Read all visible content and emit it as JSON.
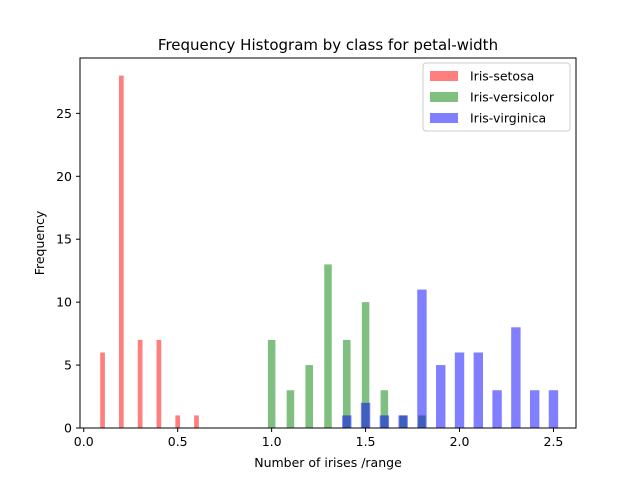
{
  "chart_data": {
    "type": "bar",
    "title": "Frequency Histogram by class for  petal-width",
    "xlabel": "Number of irises /range",
    "ylabel": "Frequency",
    "xlim": [
      -0.02,
      2.62
    ],
    "ylim": [
      0,
      29.4
    ],
    "xticks": [
      "0.0",
      "0.5",
      "1.0",
      "1.5",
      "2.0",
      "2.5"
    ],
    "yticks": [
      "0",
      "5",
      "10",
      "15",
      "20",
      "25"
    ],
    "grid": false,
    "legend_position": "top-right",
    "series": [
      {
        "name": "Iris-setosa",
        "color": "#ff0000",
        "bar_width": 0.025,
        "bins": [
          {
            "x": 0.1,
            "count": 6
          },
          {
            "x": 0.2,
            "count": 28
          },
          {
            "x": 0.3,
            "count": 7
          },
          {
            "x": 0.4,
            "count": 7
          },
          {
            "x": 0.5,
            "count": 1
          },
          {
            "x": 0.6,
            "count": 1
          }
        ]
      },
      {
        "name": "Iris-versicolor",
        "color": "#008000",
        "bar_width": 0.04,
        "bins": [
          {
            "x": 1.0,
            "count": 7
          },
          {
            "x": 1.1,
            "count": 3
          },
          {
            "x": 1.2,
            "count": 5
          },
          {
            "x": 1.3,
            "count": 13
          },
          {
            "x": 1.4,
            "count": 7
          },
          {
            "x": 1.5,
            "count": 10
          },
          {
            "x": 1.6,
            "count": 3
          },
          {
            "x": 1.7,
            "count": 1
          },
          {
            "x": 1.8,
            "count": 1
          }
        ]
      },
      {
        "name": "Iris-virginica",
        "color": "#0000ff",
        "bar_width": 0.05,
        "bins": [
          {
            "x": 1.4,
            "count": 1
          },
          {
            "x": 1.5,
            "count": 2
          },
          {
            "x": 1.6,
            "count": 1
          },
          {
            "x": 1.7,
            "count": 1
          },
          {
            "x": 1.8,
            "count": 11
          },
          {
            "x": 1.9,
            "count": 5
          },
          {
            "x": 2.0,
            "count": 6
          },
          {
            "x": 2.1,
            "count": 6
          },
          {
            "x": 2.2,
            "count": 3
          },
          {
            "x": 2.3,
            "count": 8
          },
          {
            "x": 2.4,
            "count": 3
          },
          {
            "x": 2.5,
            "count": 3
          }
        ]
      }
    ]
  }
}
